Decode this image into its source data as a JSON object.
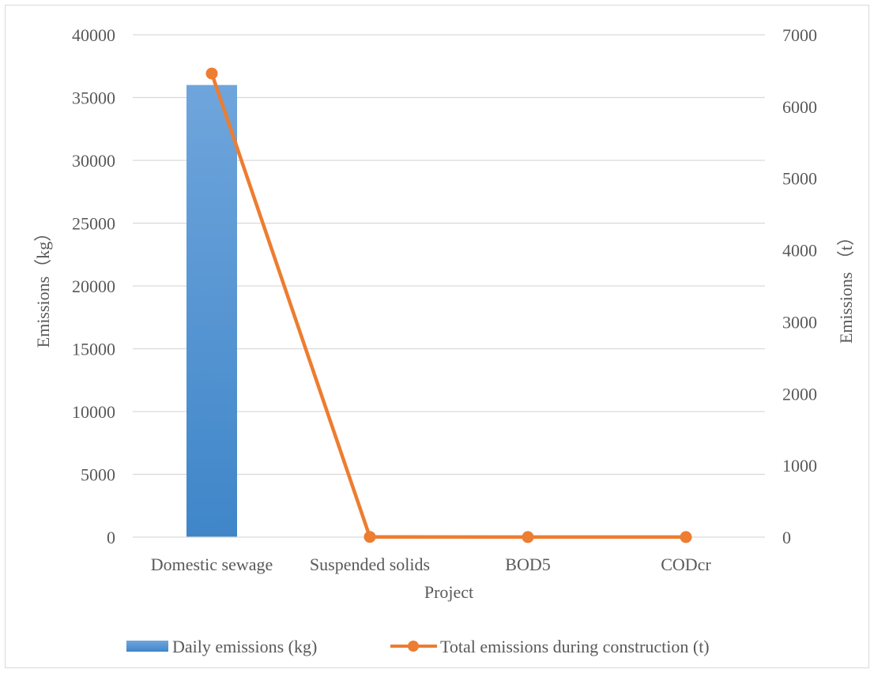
{
  "chart_data": {
    "type": "bar",
    "categories": [
      "Domestic sewage",
      "Suspended solids",
      "BOD5",
      "CODcr"
    ],
    "xlabel": "Project",
    "ylabel": "Emissions（kg）",
    "y2label": "Emissions （t）",
    "ylim": [
      0,
      40000
    ],
    "y2lim": [
      0,
      7000
    ],
    "yticks": [
      "0",
      "5000",
      "10000",
      "15000",
      "20000",
      "25000",
      "30000",
      "35000",
      "40000"
    ],
    "y2ticks": [
      "0",
      "1000",
      "2000",
      "3000",
      "4000",
      "5000",
      "6000",
      "7000"
    ],
    "grid": true,
    "legend_position": "bottom",
    "series": [
      {
        "name": "Daily emissions (kg)",
        "type": "bar",
        "axis": "left",
        "color": "#5b9bd5",
        "values": [
          36000,
          0,
          0,
          0
        ]
      },
      {
        "name": "Total emissions during construction (t)",
        "type": "line",
        "axis": "right",
        "color": "#ed7d31",
        "values": [
          6460,
          3,
          1,
          1
        ]
      }
    ]
  }
}
